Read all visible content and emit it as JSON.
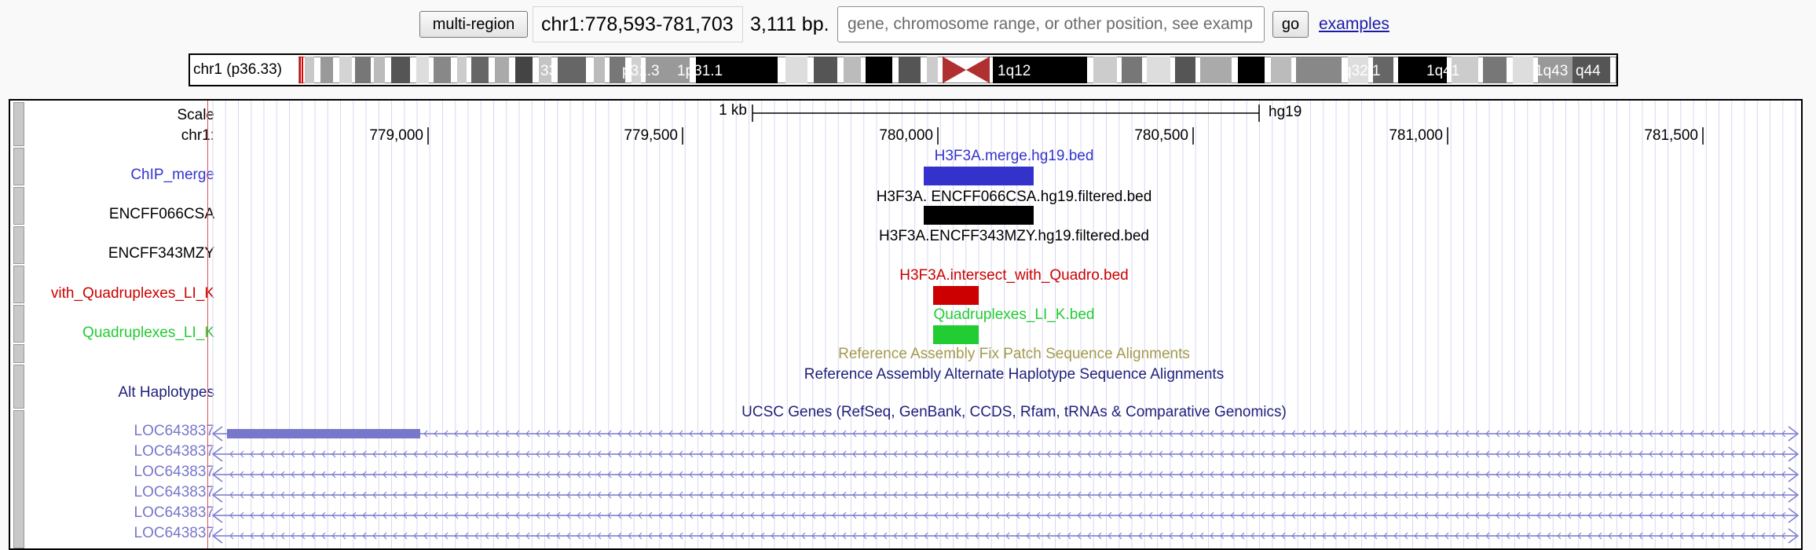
{
  "topbar": {
    "multi_region_label": "multi-region",
    "position": "chr1:778,593-781,703",
    "size_label": "3,111 bp.",
    "search_placeholder": "gene, chromosome range, or other position, see examp",
    "go_label": "go",
    "examples_label": "examples"
  },
  "ideogram": {
    "label": "chr1 (p36.33)",
    "bands": [
      "33",
      "p31.3",
      "1p31.1",
      "1q12",
      "q32.1",
      "1q41",
      "1q43",
      "q44"
    ]
  },
  "ruler": {
    "scale_label": "Scale",
    "chrom_label": "chr1:",
    "scale_bar_label": "1 kb",
    "assembly_label": "hg19",
    "ticks": [
      "779,000",
      "779,500",
      "780,000",
      "780,500",
      "781,000",
      "781,500"
    ]
  },
  "tracks": {
    "chip_merge": {
      "label": "ChIP_merge",
      "item": "H3F3A.merge.hg19.bed",
      "color": "#3333cc"
    },
    "encff066csa": {
      "label": "ENCFF066CSA",
      "item": "H3F3A. ENCFF066CSA.hg19.filtered.bed",
      "color": "#000000"
    },
    "encff343mzy": {
      "label": "ENCFF343MZY",
      "item": "H3F3A.ENCFF343MZY.hg19.filtered.bed",
      "color": "#000000"
    },
    "intersect": {
      "label": "vith_Quadruplexes_LI_K",
      "item": "H3F3A.intersect_with_Quadro.bed",
      "color": "#cc0000"
    },
    "quadruplexes": {
      "label": "Quadruplexes_LI_K",
      "item": "Quadruplexes_LI_K.bed",
      "color": "#22cc33"
    },
    "fix_patch": {
      "item": "Reference Assembly Fix Patch Sequence Alignments",
      "color": "#a39a4d"
    },
    "alt_haplotypes": {
      "label": "Alt Haplotypes",
      "item": "Reference Assembly Alternate Haplotype Sequence Alignments",
      "color": "#1f1f7a"
    },
    "ucsc_genes": {
      "item": "UCSC Genes (RefSeq, GenBank, CCDS, Rfam, tRNAs & Comparative Genomics)",
      "color": "#1f1f7a",
      "gene_color": "#7777cc",
      "genes": [
        "LOC643837",
        "LOC643837",
        "LOC643837",
        "LOC643837",
        "LOC643837",
        "LOC643837"
      ]
    }
  }
}
